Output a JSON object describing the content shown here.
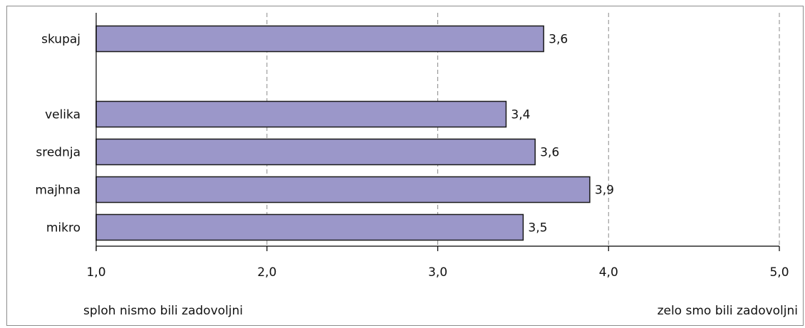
{
  "chart_data": {
    "type": "bar",
    "orientation": "horizontal",
    "categories": [
      "skupaj",
      "",
      "velika",
      "srednja",
      "majhna",
      "mikro"
    ],
    "values": [
      3.62,
      null,
      3.4,
      3.57,
      3.89,
      3.5
    ],
    "data_labels": [
      "3,6",
      "",
      "3,4",
      "3,6",
      "3,9",
      "3,5"
    ],
    "xlim": [
      1.0,
      5.0
    ],
    "x_ticks": [
      1.0,
      2.0,
      3.0,
      4.0,
      5.0
    ],
    "x_tick_labels": [
      "1,0",
      "2,0",
      "3,0",
      "4,0",
      "5,0"
    ],
    "x_low_label": "sploh nismo bili zadovoljni",
    "x_high_label": "zelo smo bili zadovoljni",
    "bar_color": "#9b97c9",
    "bar_edge_color": "#1a1a1a",
    "grid": "vertical dashed"
  }
}
